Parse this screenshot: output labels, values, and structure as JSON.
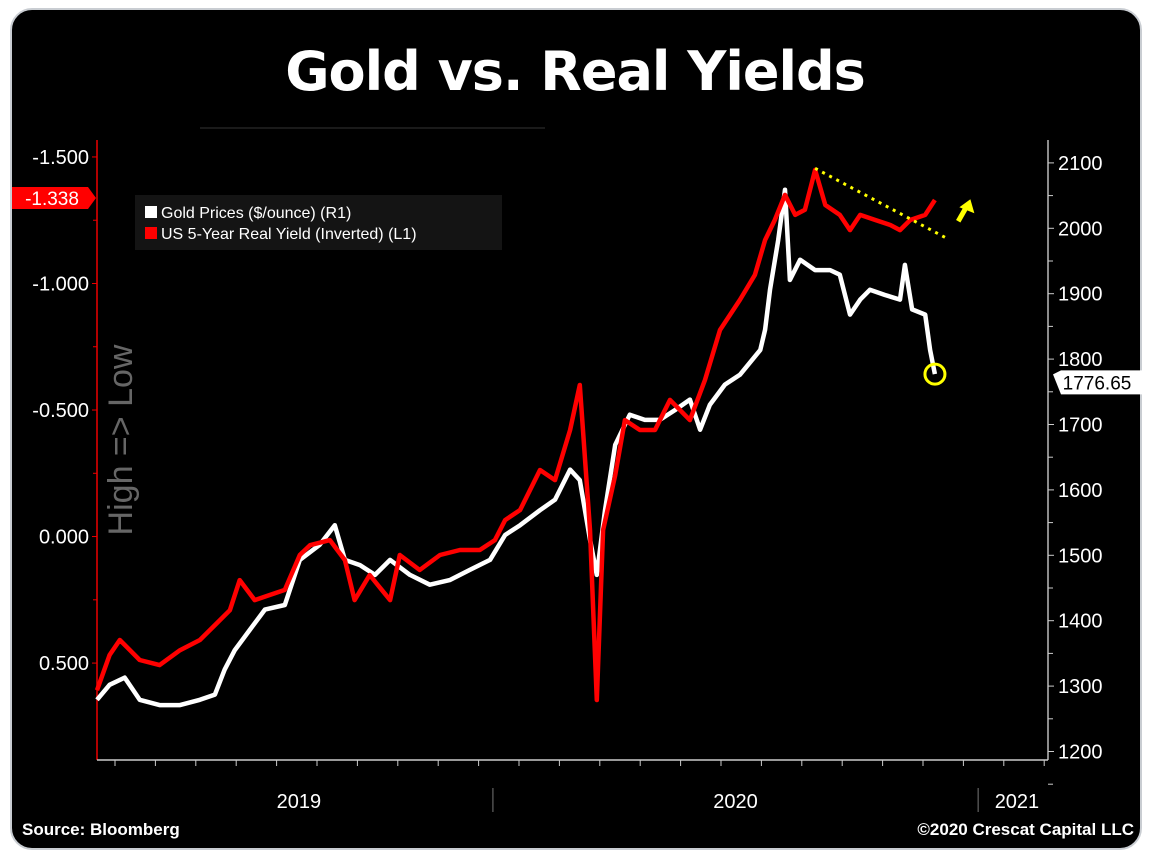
{
  "title": "Gold vs. Real Yields",
  "source": "Source: Bloomberg",
  "copyright": "©2020 Crescat Capital LLC",
  "chart_data": {
    "type": "line",
    "title": "Gold vs. Real Yields",
    "ylabel_left": "High => Low",
    "legend": [
      "Gold Prices ($/ounce) (R1)",
      "US 5-Year Real Yield (Inverted) (L1)"
    ],
    "legend_placement": "top-left",
    "xlim": [
      2019.184,
      2021.144
    ],
    "ylim_left": [
      -1.567,
      0.883
    ],
    "ylim_right": [
      1187,
      2135
    ],
    "left_ticks": [
      {
        "v": -1.5,
        "label": "-1.500"
      },
      {
        "v": -1.0,
        "label": "-1.000"
      },
      {
        "v": -0.5,
        "label": "-0.500"
      },
      {
        "v": 0.0,
        "label": "0.000"
      },
      {
        "v": 0.5,
        "label": "0.500"
      }
    ],
    "right_ticks": [
      {
        "v": 2100,
        "label": "2100"
      },
      {
        "v": 2000,
        "label": "2000"
      },
      {
        "v": 1900,
        "label": "1900"
      },
      {
        "v": 1800,
        "label": "1800"
      },
      {
        "v": 1700,
        "label": "1700"
      },
      {
        "v": 1600,
        "label": "1600"
      },
      {
        "v": 1500,
        "label": "1500"
      },
      {
        "v": 1400,
        "label": "1400"
      },
      {
        "v": 1300,
        "label": "1300"
      },
      {
        "v": 1200,
        "label": "1200"
      }
    ],
    "x_labels": [
      {
        "v": 2019.6,
        "label": "2019"
      },
      {
        "v": 2020.5,
        "label": "2020"
      },
      {
        "v": 2021.08,
        "label": "2021"
      }
    ],
    "x_dividers": [
      2020.0,
      2021.0
    ],
    "last_values": {
      "yield": "-1.338",
      "gold": "1776.65"
    },
    "colors": {
      "gold": "#ffffff",
      "yield": "#ff0000",
      "annotation": "#ffff00"
    },
    "series": [
      {
        "name": "Gold Prices ($/ounce) (R1)",
        "axis": "right",
        "color": "#ffffff",
        "points": [
          [
            2019.184,
            1279
          ],
          [
            2019.21,
            1302
          ],
          [
            2019.241,
            1313
          ],
          [
            2019.272,
            1279
          ],
          [
            2019.313,
            1271
          ],
          [
            2019.355,
            1271
          ],
          [
            2019.396,
            1279
          ],
          [
            2019.427,
            1287
          ],
          [
            2019.447,
            1325
          ],
          [
            2019.468,
            1355
          ],
          [
            2019.499,
            1386
          ],
          [
            2019.53,
            1417
          ],
          [
            2019.571,
            1424
          ],
          [
            2019.602,
            1493
          ],
          [
            2019.643,
            1516
          ],
          [
            2019.674,
            1546
          ],
          [
            2019.695,
            1493
          ],
          [
            2019.726,
            1485
          ],
          [
            2019.757,
            1470
          ],
          [
            2019.788,
            1493
          ],
          [
            2019.829,
            1470
          ],
          [
            2019.87,
            1455
          ],
          [
            2019.911,
            1462
          ],
          [
            2019.953,
            1478
          ],
          [
            2019.994,
            1493
          ],
          [
            2020.025,
            1531
          ],
          [
            2020.056,
            1546
          ],
          [
            2020.097,
            1569
          ],
          [
            2020.128,
            1585
          ],
          [
            2020.159,
            1631
          ],
          [
            2020.179,
            1615
          ],
          [
            2020.2,
            1524
          ],
          [
            2020.214,
            1470
          ],
          [
            2020.231,
            1569
          ],
          [
            2020.252,
            1669
          ],
          [
            2020.282,
            1715
          ],
          [
            2020.313,
            1707
          ],
          [
            2020.344,
            1707
          ],
          [
            2020.375,
            1722
          ],
          [
            2020.406,
            1738
          ],
          [
            2020.427,
            1692
          ],
          [
            2020.447,
            1730
          ],
          [
            2020.478,
            1761
          ],
          [
            2020.509,
            1776
          ],
          [
            2020.551,
            1814
          ],
          [
            2020.561,
            1845
          ],
          [
            2020.571,
            1906
          ],
          [
            2020.588,
            1982
          ],
          [
            2020.602,
            2059
          ],
          [
            2020.612,
            1921
          ],
          [
            2020.633,
            1952
          ],
          [
            2020.664,
            1936
          ],
          [
            2020.695,
            1936
          ],
          [
            2020.715,
            1929
          ],
          [
            2020.736,
            1868
          ],
          [
            2020.757,
            1891
          ],
          [
            2020.777,
            1906
          ],
          [
            2020.808,
            1898
          ],
          [
            2020.839,
            1891
          ],
          [
            2020.849,
            1944
          ],
          [
            2020.864,
            1876
          ],
          [
            2020.891,
            1868
          ],
          [
            2020.901,
            1814
          ],
          [
            2020.911,
            1777
          ]
        ]
      },
      {
        "name": "US 5-Year Real Yield (Inverted) (L1)",
        "axis": "left",
        "color": "#ff0000",
        "points": [
          [
            2019.184,
            0.607
          ],
          [
            2019.21,
            0.468
          ],
          [
            2019.231,
            0.409
          ],
          [
            2019.272,
            0.488
          ],
          [
            2019.313,
            0.508
          ],
          [
            2019.355,
            0.449
          ],
          [
            2019.396,
            0.409
          ],
          [
            2019.427,
            0.35
          ],
          [
            2019.458,
            0.291
          ],
          [
            2019.478,
            0.172
          ],
          [
            2019.509,
            0.251
          ],
          [
            2019.54,
            0.231
          ],
          [
            2019.571,
            0.211
          ],
          [
            2019.602,
            0.073
          ],
          [
            2019.623,
            0.034
          ],
          [
            2019.664,
            0.014
          ],
          [
            2019.695,
            0.093
          ],
          [
            2019.715,
            0.251
          ],
          [
            2019.746,
            0.152
          ],
          [
            2019.788,
            0.251
          ],
          [
            2019.808,
            0.073
          ],
          [
            2019.849,
            0.132
          ],
          [
            2019.891,
            0.073
          ],
          [
            2019.932,
            0.053
          ],
          [
            2019.973,
            0.053
          ],
          [
            2020.004,
            0.014
          ],
          [
            2020.025,
            -0.065
          ],
          [
            2020.056,
            -0.105
          ],
          [
            2020.097,
            -0.263
          ],
          [
            2020.128,
            -0.223
          ],
          [
            2020.159,
            -0.421
          ],
          [
            2020.179,
            -0.599
          ],
          [
            2020.2,
            -0.026
          ],
          [
            2020.214,
            0.646
          ],
          [
            2020.227,
            -0.026
          ],
          [
            2020.252,
            -0.243
          ],
          [
            2020.272,
            -0.46
          ],
          [
            2020.303,
            -0.421
          ],
          [
            2020.334,
            -0.421
          ],
          [
            2020.365,
            -0.54
          ],
          [
            2020.406,
            -0.46
          ],
          [
            2020.437,
            -0.619
          ],
          [
            2020.468,
            -0.816
          ],
          [
            2020.509,
            -0.935
          ],
          [
            2020.54,
            -1.034
          ],
          [
            2020.561,
            -1.172
          ],
          [
            2020.581,
            -1.251
          ],
          [
            2020.602,
            -1.35
          ],
          [
            2020.623,
            -1.271
          ],
          [
            2020.643,
            -1.291
          ],
          [
            2020.664,
            -1.449
          ],
          [
            2020.685,
            -1.31
          ],
          [
            2020.715,
            -1.271
          ],
          [
            2020.736,
            -1.211
          ],
          [
            2020.757,
            -1.271
          ],
          [
            2020.788,
            -1.251
          ],
          [
            2020.819,
            -1.231
          ],
          [
            2020.839,
            -1.211
          ],
          [
            2020.86,
            -1.251
          ],
          [
            2020.891,
            -1.271
          ],
          [
            2020.911,
            -1.33
          ]
        ]
      }
    ],
    "annotations": {
      "trendline": [
        [
          2020.664,
          -1.455
        ],
        [
          2020.932,
          -1.182
        ]
      ],
      "arrow": [
        [
          2020.959,
          -1.246
        ],
        [
          2020.984,
          -1.333
        ]
      ],
      "circle": [
        2020.911,
        1777
      ]
    }
  }
}
